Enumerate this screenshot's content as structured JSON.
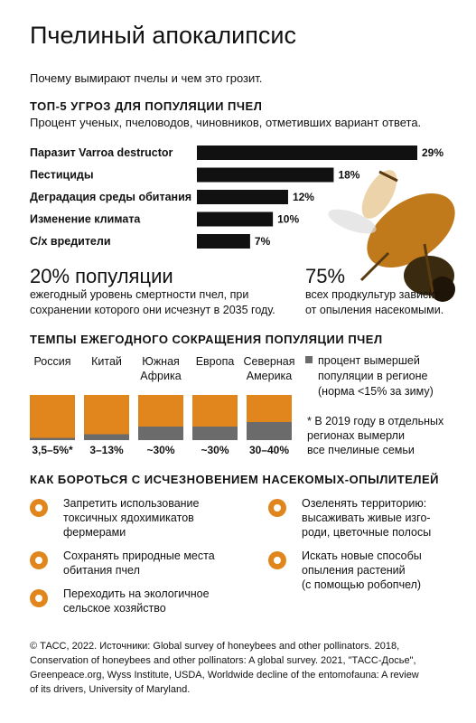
{
  "header": {
    "title": "Пчелиный апокалипсис",
    "subtitle": "Почему вымирают пчелы и чем это грозит."
  },
  "chart_data": [
    {
      "type": "hbar",
      "title": "ТОП-5 УГРОЗ ДЛЯ ПОПУЛЯЦИИ ПЧЕЛ",
      "subtitle": "Процент ученых, пчеловодов, чиновников, отметивших вариант ответа.",
      "categories": [
        "Паразит Varroa destructor",
        "Пестициды",
        "Деградация среды обитания",
        "Изменение климата",
        "С/х вредители"
      ],
      "values": [
        29,
        18,
        12,
        10,
        7
      ],
      "value_labels": [
        "29%",
        "18%",
        "12%",
        "10%",
        "7%"
      ],
      "color": "#111111"
    },
    {
      "type": "squares",
      "title": "ТЕМПЫ ЕЖЕГОДНОГО СОКРАЩЕНИЯ ПОПУЛЯЦИИ ПЧЕЛ",
      "categories": [
        [
          "Россия"
        ],
        [
          "Китай"
        ],
        [
          "Южная",
          "Африка"
        ],
        [
          "Европа"
        ],
        [
          "Северная",
          "Америка"
        ]
      ],
      "ylim": [
        0,
        100
      ],
      "base_color": "#e0861d",
      "series": [
        {
          "name": [
            "процент вымершей",
            "популяции в регионе",
            "(норма <15% за зиму)"
          ],
          "color": "#6b6b6b",
          "values": [
            5,
            13,
            30,
            30,
            40
          ],
          "value_labels": [
            "3,5–5%*",
            "3–13%",
            "~30%",
            "~30%",
            "30–40%"
          ]
        }
      ],
      "note": [
        "* В 2019 году в отдельных",
        "регионах вымерли",
        "все пчелиные семьи"
      ]
    }
  ],
  "stats": [
    {
      "big": "20% популяции",
      "lines": [
        "ежегодный уровень смертности пчел, при",
        "сохранении которого они исчезнут в 2035 году."
      ]
    },
    {
      "big": "75%",
      "lines": [
        "всех продкультур зависит",
        "от опыления насекомыми."
      ]
    }
  ],
  "actions": {
    "title": "КАК БОРОТЬСЯ С ИСЧЕЗНОВЕНИЕМ НАСЕКОМЫХ-ОПЫЛИТЕЛЕЙ",
    "items": [
      {
        "lines": [
          "Запретить использование",
          "токсичных ядохимикатов",
          "фермерами"
        ]
      },
      {
        "lines": [
          "Сохранять природные места",
          "обитания пчел"
        ]
      },
      {
        "lines": [
          "Переходить на экологичное",
          "сельское хозяйство"
        ]
      },
      {
        "lines": [
          "Озеленять территорию:",
          "высаживать живые изго-",
          "роди, цветочные полосы"
        ]
      },
      {
        "lines": [
          "Искать новые способы",
          "опыления растений",
          "(с помощью робопчел)"
        ]
      }
    ]
  },
  "footer": [
    "© ТАСС, 2022. Источники: Global survey of honeybees and other pollinators. 2018,",
    "Conservation of honeybees and other pollinators: A global survey. 2021, \"ТАСС-Досье\",",
    "Greenpeace.org, Wyss Institute, USDA, Worldwide decline of the entomofauna: A review",
    "of its drivers, University of Maryland."
  ]
}
